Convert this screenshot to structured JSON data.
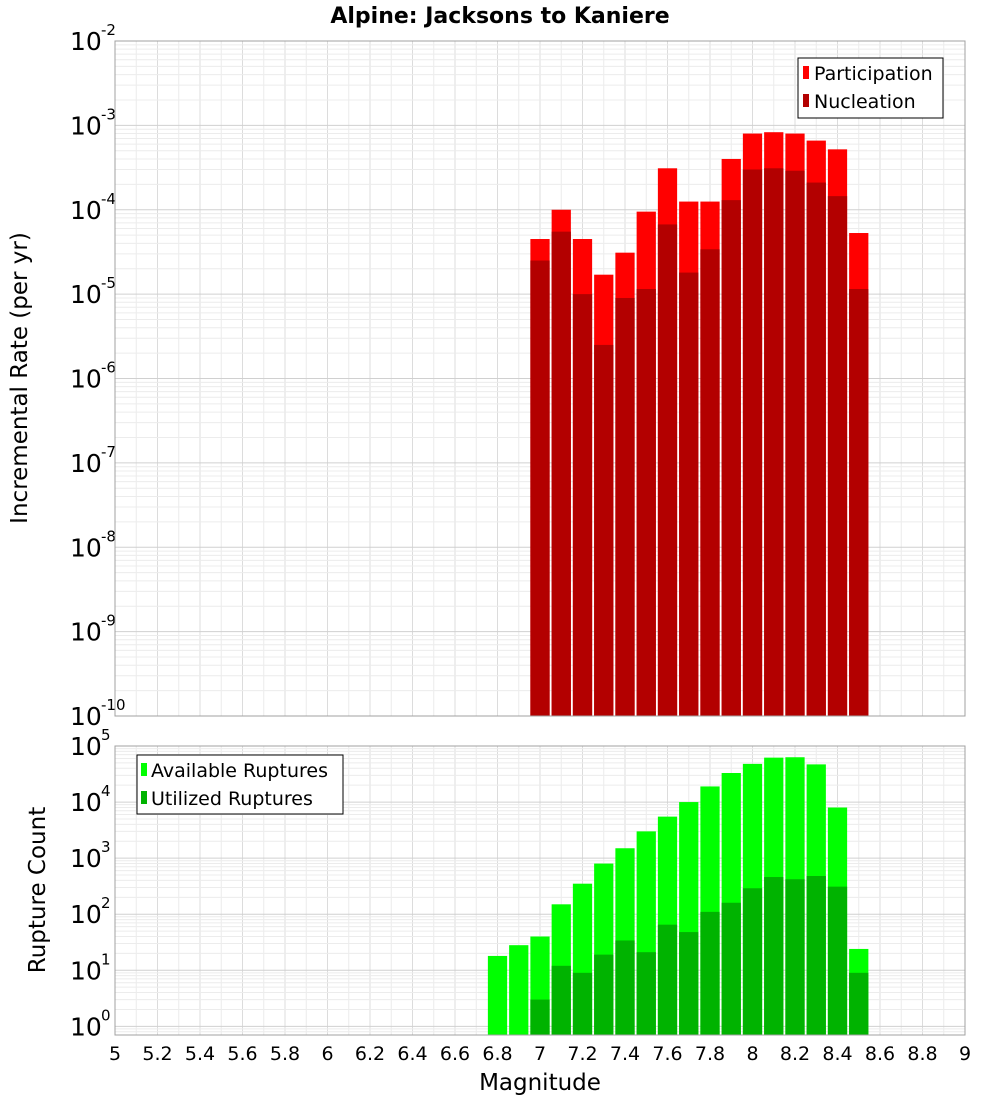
{
  "chart_data": [
    {
      "type": "bar",
      "title": "Alpine: Jacksons to Kaniere",
      "xlabel": "",
      "ylabel": "Incremental Rate (per yr)",
      "yscale": "log",
      "ylim": [
        1e-10,
        0.01
      ],
      "xlim": [
        5,
        9
      ],
      "grid": true,
      "legend_position": "top-right",
      "x": [
        7.0,
        7.1,
        7.2,
        7.3,
        7.4,
        7.5,
        7.6,
        7.7,
        7.8,
        7.9,
        8.0,
        8.1,
        8.2,
        8.3,
        8.4,
        8.5
      ],
      "series": [
        {
          "name": "Participation",
          "color": "#ff0000",
          "values": [
            4.5e-05,
            0.0001,
            4.5e-05,
            1.7e-05,
            3.1e-05,
            9.5e-05,
            0.00031,
            0.000125,
            0.000125,
            0.0004,
            0.0008,
            0.00083,
            0.0008,
            0.00066,
            0.00052,
            5.3e-05
          ]
        },
        {
          "name": "Nucleation",
          "color": "#b30000",
          "values": [
            2.5e-05,
            5.5e-05,
            1e-05,
            2.5e-06,
            9e-06,
            1.15e-05,
            6.7e-05,
            1.8e-05,
            3.4e-05,
            0.00013,
            0.0003,
            0.00031,
            0.00029,
            0.00021,
            0.000145,
            1.15e-05
          ]
        }
      ]
    },
    {
      "type": "bar",
      "title": "",
      "xlabel": "Magnitude",
      "ylabel": "Rupture Count",
      "yscale": "log",
      "ylim": [
        0.7,
        100000
      ],
      "xlim": [
        5,
        9
      ],
      "grid": true,
      "legend_position": "top-left",
      "x_ticks": [
        "5",
        "5.2",
        "5.4",
        "5.6",
        "5.8",
        "6",
        "6.2",
        "6.4",
        "6.6",
        "6.8",
        "7",
        "7.2",
        "7.4",
        "7.6",
        "7.8",
        "8",
        "8.2",
        "8.4",
        "8.6",
        "8.8",
        "9"
      ],
      "x": [
        6.8,
        6.9,
        7.0,
        7.1,
        7.2,
        7.3,
        7.4,
        7.5,
        7.6,
        7.7,
        7.8,
        7.9,
        8.0,
        8.1,
        8.2,
        8.3,
        8.4,
        8.5
      ],
      "series": [
        {
          "name": "Available Ruptures",
          "color": "#00ff00",
          "values": [
            18,
            28,
            40,
            150,
            350,
            800,
            1500,
            3000,
            5500,
            10000,
            19000,
            33000,
            48000,
            62000,
            63000,
            47000,
            8000,
            24
          ]
        },
        {
          "name": "Utilized Ruptures",
          "color": "#00b300",
          "values": [
            null,
            null,
            3,
            12,
            9,
            19,
            34,
            21,
            65,
            48,
            110,
            160,
            290,
            460,
            420,
            480,
            310,
            9
          ]
        }
      ]
    }
  ]
}
